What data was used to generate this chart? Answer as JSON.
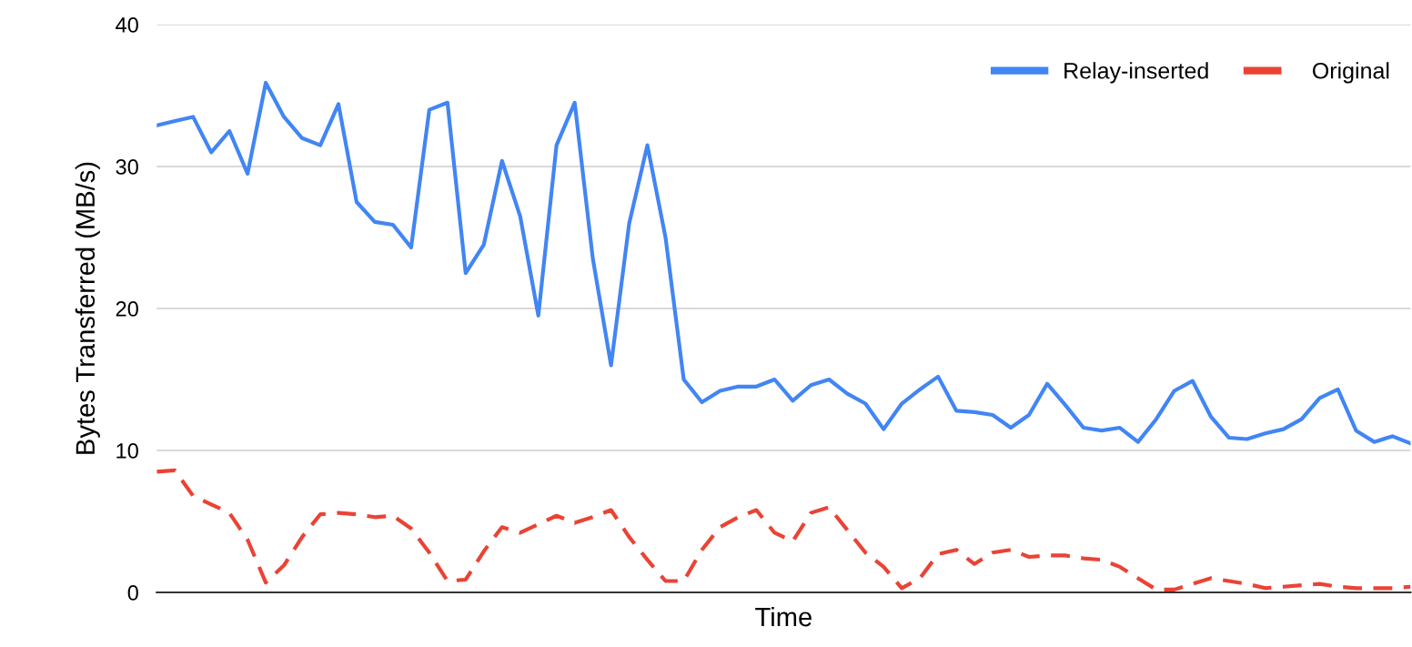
{
  "chart_data": {
    "type": "line",
    "xlabel": "Time",
    "ylabel": "Bytes Transferred (MB/s)",
    "categories": [
      null,
      null,
      null,
      null,
      null,
      null,
      null,
      null,
      null,
      null,
      null,
      null,
      null,
      null,
      null,
      null,
      null,
      null,
      null,
      null,
      null,
      null,
      null,
      null,
      null,
      null,
      null,
      null,
      null,
      null,
      null,
      null,
      null,
      null,
      null,
      null,
      null,
      null,
      null,
      null,
      null,
      null,
      null,
      null,
      null,
      null,
      null,
      null,
      null,
      null,
      null,
      null,
      null,
      null,
      null,
      null,
      null,
      null,
      null,
      null,
      null,
      null,
      null,
      null,
      null,
      null,
      null,
      null,
      null,
      null
    ],
    "series": [
      {
        "name": "Relay-inserted",
        "color": "#4285f4",
        "line_style": "solid",
        "values": [
          32.9,
          33.2,
          33.5,
          31.0,
          32.5,
          29.5,
          35.9,
          33.5,
          32.0,
          31.5,
          34.4,
          27.5,
          26.1,
          25.9,
          24.3,
          34.0,
          34.5,
          22.5,
          24.5,
          30.4,
          26.5,
          19.5,
          31.5,
          34.5,
          23.5,
          16.0,
          26.0,
          31.5,
          25.0,
          15.0,
          13.4,
          14.2,
          14.5,
          14.5,
          15.0,
          13.5,
          14.6,
          15.0,
          14.0,
          13.3,
          11.5,
          13.3,
          14.3,
          15.2,
          12.8,
          12.7,
          12.5,
          11.6,
          12.5,
          14.7,
          13.2,
          11.6,
          11.4,
          11.6,
          10.6,
          12.2,
          14.2,
          14.9,
          12.4,
          10.9,
          10.8,
          11.2,
          11.5,
          12.2,
          13.7,
          14.3,
          11.4,
          10.6,
          11.0,
          10.5
        ]
      },
      {
        "name": "Original",
        "color": "#ea4335",
        "line_style": "dashed",
        "values": [
          8.5,
          8.6,
          6.8,
          6.2,
          5.6,
          3.7,
          0.7,
          1.9,
          3.9,
          5.5,
          5.6,
          5.5,
          5.3,
          5.4,
          4.5,
          2.8,
          0.8,
          0.9,
          2.9,
          4.6,
          4.2,
          4.8,
          5.4,
          4.9,
          5.3,
          5.8,
          3.9,
          2.3,
          0.8,
          0.8,
          3.0,
          4.6,
          5.3,
          5.8,
          4.2,
          3.6,
          5.6,
          6.0,
          4.4,
          2.8,
          1.8,
          0.3,
          1.0,
          2.7,
          3.0,
          2.0,
          2.8,
          3.0,
          2.5,
          2.6,
          2.6,
          2.4,
          2.3,
          1.8,
          1.0,
          0.2,
          0.2,
          0.6,
          1.0,
          0.8,
          0.6,
          0.3,
          0.4,
          0.5,
          0.6,
          0.4,
          0.3,
          0.3,
          0.3,
          0.4
        ]
      }
    ],
    "ylim": [
      0,
      40
    ],
    "yticks": [
      0,
      10,
      20,
      30,
      40
    ],
    "grid": "y",
    "legend": "top right",
    "marker": "none"
  }
}
